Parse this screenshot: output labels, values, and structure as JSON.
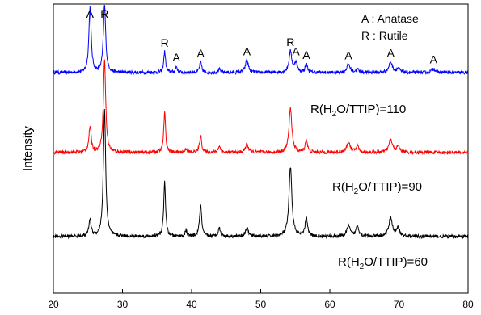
{
  "chart_data": {
    "type": "line",
    "title": "",
    "xlabel": "",
    "ylabel": "Intensity",
    "xlim": [
      20,
      80
    ],
    "x_ticks": [
      "20",
      "30",
      "40",
      "50",
      "60",
      "70",
      "80"
    ],
    "x_tick_values": [
      20,
      30,
      40,
      50,
      60,
      70,
      80
    ],
    "y_ticks": "none",
    "grid": false,
    "legend": {
      "placement": "top-right",
      "items": [
        "A : Anatase",
        "R : Rutile"
      ]
    },
    "peak_labels": [
      {
        "text": "A",
        "x": 25.3
      },
      {
        "text": "R",
        "x": 27.4
      },
      {
        "text": "R",
        "x": 36.1
      },
      {
        "text": "A",
        "x": 37.8
      },
      {
        "text": "A",
        "x": 41.3
      },
      {
        "text": "A",
        "x": 48.0
      },
      {
        "text": "R",
        "x": 54.3
      },
      {
        "text": "A",
        "x": 55.1
      },
      {
        "text": "A",
        "x": 56.6
      },
      {
        "text": "A",
        "x": 62.7
      },
      {
        "text": "A",
        "x": 68.8
      },
      {
        "text": "A",
        "x": 75.0
      }
    ],
    "series": [
      {
        "label": "R(H2O/TTIP)=110",
        "label_parts": [
          "R(H",
          "2",
          "O/TTIP)=110"
        ],
        "color": "#0000ff",
        "baseline": 0.0,
        "noise": 0.8,
        "peaks": [
          [
            25.3,
            31,
            0.2
          ],
          [
            27.4,
            32,
            0.2
          ],
          [
            36.1,
            10,
            0.16
          ],
          [
            37.8,
            3,
            0.15
          ],
          [
            41.3,
            5,
            0.18
          ],
          [
            44.0,
            1.5,
            0.2
          ],
          [
            48.0,
            6,
            0.25
          ],
          [
            54.3,
            10,
            0.25
          ],
          [
            55.1,
            5,
            0.2
          ],
          [
            56.6,
            4,
            0.2
          ],
          [
            62.7,
            4,
            0.28
          ],
          [
            64.0,
            1.5,
            0.25
          ],
          [
            68.8,
            5,
            0.3
          ],
          [
            69.9,
            2,
            0.25
          ],
          [
            75.0,
            2,
            0.3
          ]
        ]
      },
      {
        "label": "R(H2O/TTIP)=90",
        "label_parts": [
          "R(H",
          "2",
          "O/TTIP)=90"
        ],
        "color": "#ff0000",
        "baseline": -38,
        "noise": 0.8,
        "peaks": [
          [
            25.3,
            12,
            0.2
          ],
          [
            27.4,
            44,
            0.2
          ],
          [
            36.1,
            19,
            0.16
          ],
          [
            39.2,
            2,
            0.15
          ],
          [
            41.3,
            8,
            0.18
          ],
          [
            44.0,
            3,
            0.2
          ],
          [
            48.0,
            4,
            0.25
          ],
          [
            54.3,
            21,
            0.25
          ],
          [
            56.6,
            6,
            0.2
          ],
          [
            62.7,
            5,
            0.28
          ],
          [
            64.0,
            3,
            0.25
          ],
          [
            68.8,
            6,
            0.3
          ],
          [
            69.9,
            3,
            0.25
          ]
        ]
      },
      {
        "label": "R(H2O/TTIP)=60",
        "label_parts": [
          "R(H",
          "2",
          "O/TTIP)=60"
        ],
        "color": "#000000",
        "baseline": -78,
        "noise": 0.8,
        "peaks": [
          [
            25.3,
            8,
            0.2
          ],
          [
            27.4,
            60,
            0.2
          ],
          [
            36.1,
            26,
            0.16
          ],
          [
            39.2,
            3,
            0.15
          ],
          [
            41.3,
            15,
            0.18
          ],
          [
            44.0,
            4,
            0.2
          ],
          [
            48.0,
            4,
            0.25
          ],
          [
            54.3,
            33,
            0.25
          ],
          [
            56.6,
            9,
            0.2
          ],
          [
            62.7,
            5,
            0.28
          ],
          [
            64.0,
            5,
            0.25
          ],
          [
            68.8,
            9,
            0.3
          ],
          [
            69.9,
            4,
            0.25
          ]
        ]
      }
    ]
  }
}
